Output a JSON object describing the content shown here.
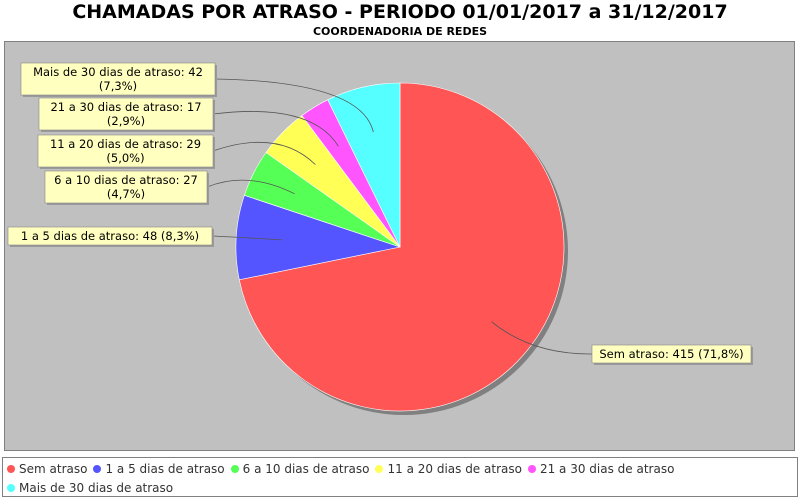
{
  "chart_data": {
    "type": "pie",
    "title": "CHAMADAS POR ATRASO - PERIODO 01/01/2017 a 31/12/2017",
    "subtitle": "COORDENADORIA DE REDES",
    "slices": [
      {
        "name": "Sem atraso",
        "value": 415,
        "percent": "71,8%",
        "label": "Sem atraso: 415 (71,8%)",
        "label_lines": [
          "Sem atraso: 415 (71,8%)"
        ],
        "color": "#ff5555"
      },
      {
        "name": "1 a 5 dias de atraso",
        "value": 48,
        "percent": "8,3%",
        "label": "1 a 5 dias de atraso: 48 (8,3%)",
        "label_lines": [
          "1 a 5 dias de atraso: 48 (8,3%)"
        ],
        "color": "#5555ff"
      },
      {
        "name": "6 a 10 dias de atraso",
        "value": 27,
        "percent": "4,7%",
        "label": "6 a 10 dias de atraso: 27 (4,7%)",
        "label_lines": [
          "6 a 10 dias de atraso: 27",
          "(4,7%)"
        ],
        "color": "#55ff55"
      },
      {
        "name": "11 a 20 dias de atraso",
        "value": 29,
        "percent": "5,0%",
        "label": "11 a 20 dias de atraso: 29 (5,0%)",
        "label_lines": [
          "11 a 20 dias de atraso: 29",
          "(5,0%)"
        ],
        "color": "#ffff55"
      },
      {
        "name": "21 a 30 dias de atraso",
        "value": 17,
        "percent": "2,9%",
        "label": "21 a 30 dias de atraso: 17 (2,9%)",
        "label_lines": [
          "21 a 30 dias de atraso: 17",
          "(2,9%)"
        ],
        "color": "#ff55ff"
      },
      {
        "name": "Mais de 30 dias de atraso",
        "value": 42,
        "percent": "7,3%",
        "label": "Mais de 30 dias de atraso: 42 (7,3%)",
        "label_lines": [
          "Mais de 30 dias de atraso: 42",
          "(7,3%)"
        ],
        "color": "#55ffff"
      }
    ],
    "direction": "clockwise",
    "start_angle": "top",
    "legend_position": "bottom",
    "background": "#c0c0c0",
    "label_background": "#ffffc0"
  }
}
